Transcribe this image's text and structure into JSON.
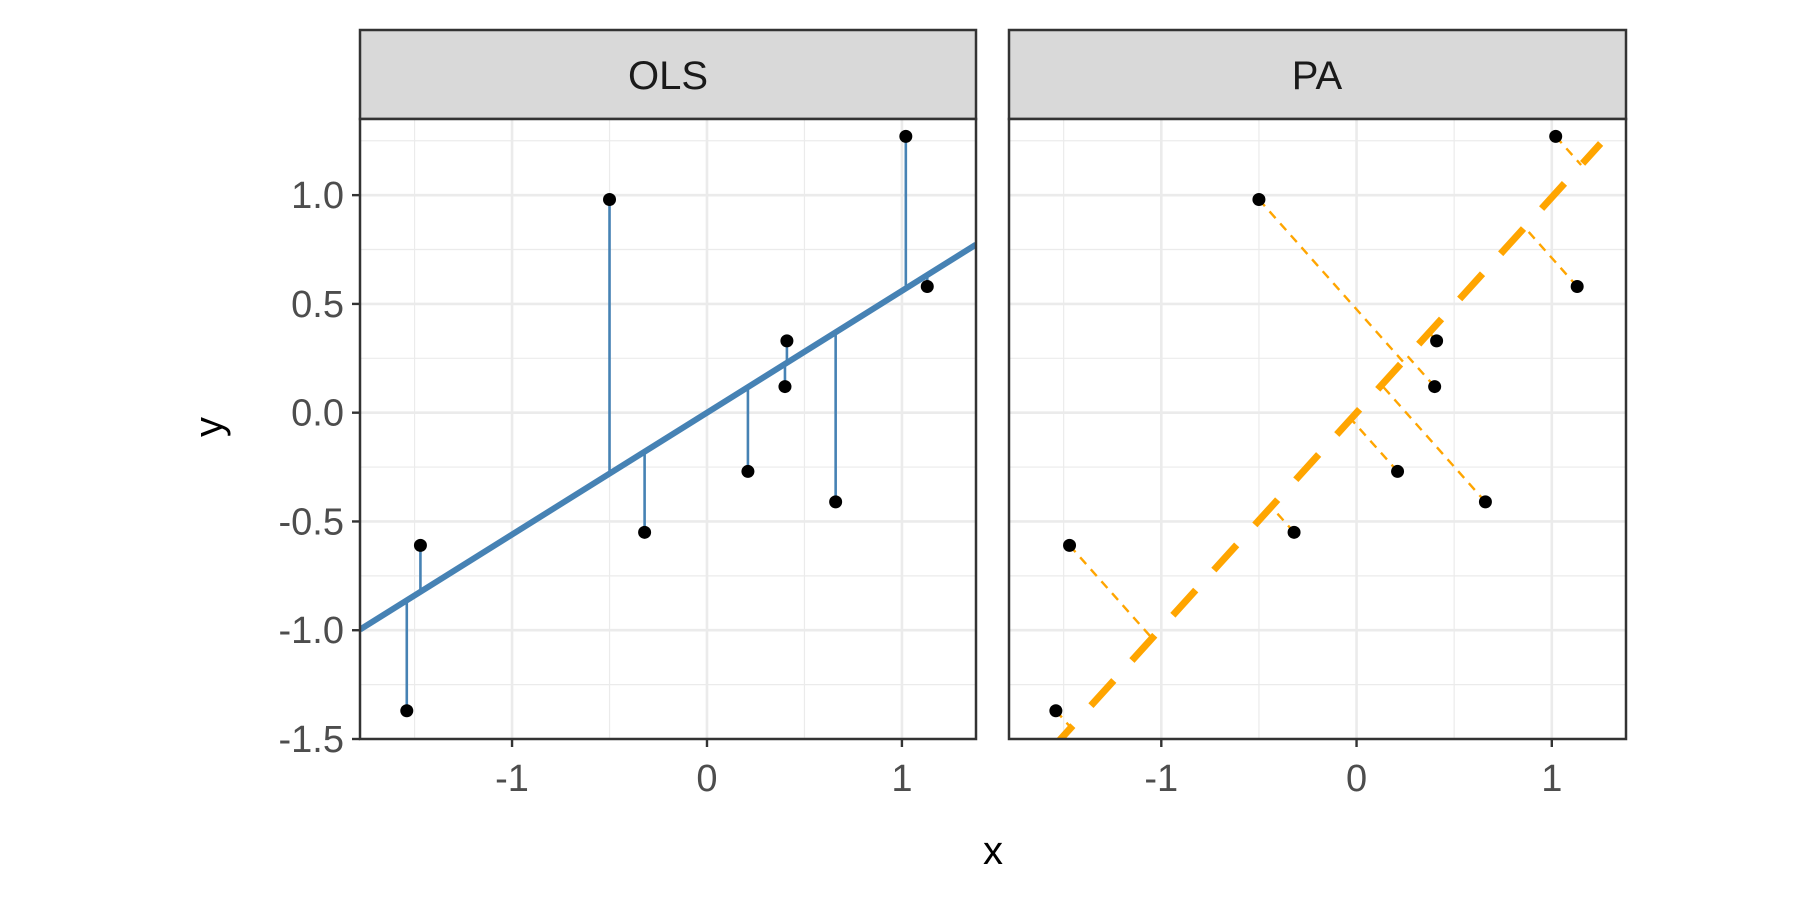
{
  "chart_data": {
    "type": "scatter",
    "xlabel": "x",
    "ylabel": "y",
    "xlim": [
      -1.78,
      1.38
    ],
    "ylim": [
      -1.5,
      1.35
    ],
    "x_ticks": [
      -1,
      0,
      1
    ],
    "x_tick_labels": [
      "-1",
      "0",
      "1"
    ],
    "y_ticks": [
      -1.5,
      -1.0,
      -0.5,
      0.0,
      0.5,
      1.0
    ],
    "y_tick_labels": [
      "-1.5",
      "-1.0",
      "-0.5",
      "0.0",
      "0.5",
      "1.0"
    ],
    "grid": true,
    "points": {
      "x": [
        -1.54,
        -1.47,
        -0.5,
        -0.32,
        0.21,
        0.4,
        0.41,
        0.66,
        1.02,
        1.13
      ],
      "y": [
        -1.37,
        -0.61,
        0.98,
        -0.55,
        -0.27,
        0.12,
        0.33,
        -0.41,
        1.27,
        0.58
      ]
    },
    "panels": [
      {
        "name": "OLS",
        "line": {
          "slope": 0.56,
          "intercept": 0.0,
          "color": "#4682B4",
          "style": "solid"
        },
        "residuals": {
          "type": "vertical",
          "color": "#4682B4",
          "style": "solid"
        }
      },
      {
        "name": "PA",
        "line": {
          "slope": 0.99,
          "intercept": 0.0,
          "color": "#FFA500",
          "style": "dashed"
        },
        "residuals": {
          "type": "perpendicular",
          "color": "#FFA500",
          "style": "dashed"
        }
      }
    ],
    "colors": {
      "points": "#000000",
      "ols": "#4682B4",
      "pa": "#FFA500",
      "strip_fill": "#D9D9D9",
      "grid": "#EBEBEB"
    }
  }
}
